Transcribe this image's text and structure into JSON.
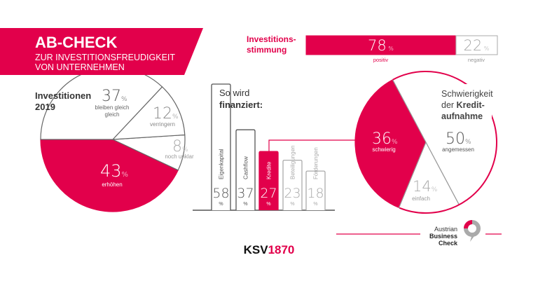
{
  "colors": {
    "accent": "#e2004b",
    "line": "#555555",
    "muted": "#999999",
    "text": "#333333"
  },
  "header": {
    "title": "AB-CHECK",
    "subtitle_line1": "ZUR INVESTITIONSFREUDIGKEIT",
    "subtitle_line2": "VON UNTERNEHMEN"
  },
  "stimmung": {
    "label_line1": "Investitions-",
    "label_line2": "stimmung"
  },
  "footer": {
    "brand_black": "KSV",
    "brand_red": "1870",
    "logo_line1": "Austrian",
    "logo_line2": "Business",
    "logo_line3": "Check"
  },
  "chart_data": [
    {
      "type": "pie",
      "title_line1": "Investitionen",
      "title_line2": "2019",
      "unit": "%",
      "slices": [
        {
          "label": "erhöhen",
          "value": 43,
          "display": "43"
        },
        {
          "label": "noch unklar",
          "value": 8,
          "display": "8"
        },
        {
          "label": "verringern",
          "value": 12,
          "display": "12"
        },
        {
          "label": "bleiben gleich",
          "value": 37,
          "display": "37"
        }
      ]
    },
    {
      "type": "bar",
      "title_line1": "So wird",
      "title_line2": "finanziert:",
      "unit": "%",
      "categories": [
        "Eigenkapital",
        "Cashflow",
        "Kredite",
        "Beteiligungen",
        "Förderungen"
      ],
      "values": [
        58,
        37,
        27,
        23,
        18
      ],
      "display": [
        "58",
        "37",
        "27",
        "23",
        "18"
      ],
      "highlight": "Kredite"
    },
    {
      "type": "bar",
      "orientation": "horizontal-stacked",
      "unit": "%",
      "categories": [
        "positiv",
        "negativ"
      ],
      "values": [
        78,
        22
      ],
      "display": [
        "78",
        "22"
      ]
    },
    {
      "type": "pie",
      "title_line1": "Schwierigkeit",
      "title_line2a": "der ",
      "title_line2b": "Kredit-",
      "title_line3": "aufnahme",
      "unit": "%",
      "slices": [
        {
          "label": "schwierig",
          "value": 36,
          "display": "36"
        },
        {
          "label": "einfach",
          "value": 14,
          "display": "14"
        },
        {
          "label": "angemessen",
          "value": 50,
          "display": "50"
        }
      ]
    }
  ]
}
